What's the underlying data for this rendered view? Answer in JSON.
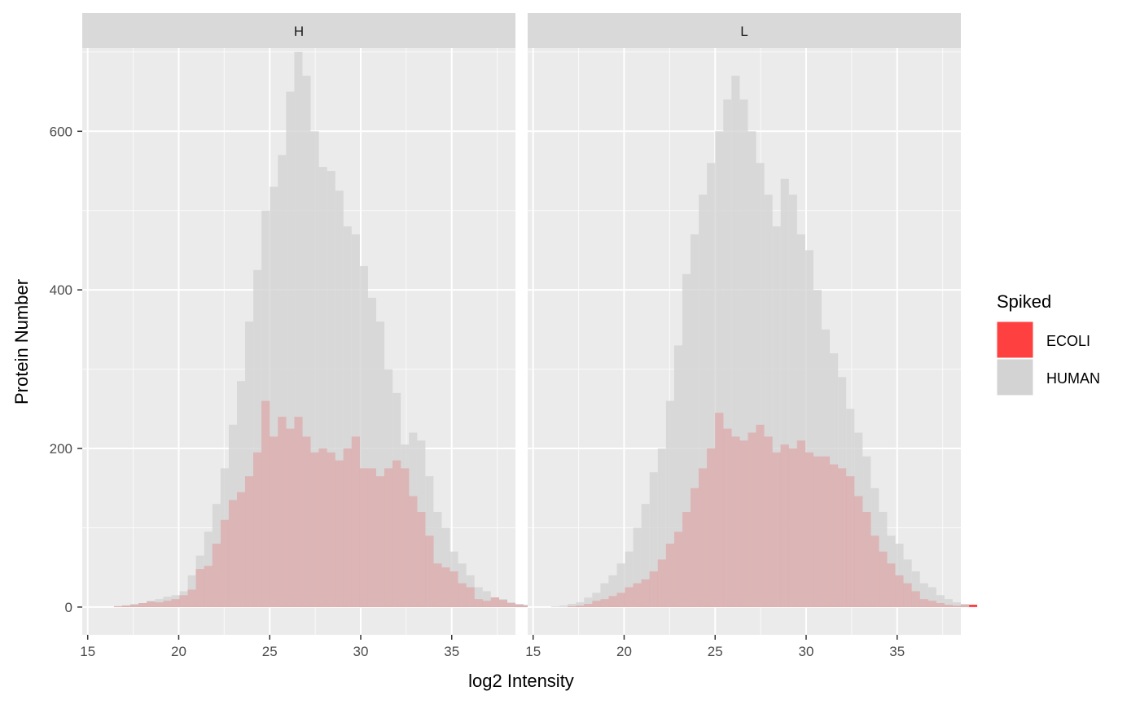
{
  "chart_data": {
    "type": "histogram",
    "xlabel": "log2 Intensity",
    "ylabel": "Protein Number",
    "facets": [
      "H",
      "L"
    ],
    "x_ticks": [
      15,
      20,
      25,
      30,
      35
    ],
    "y_ticks": [
      0,
      200,
      400,
      600
    ],
    "xlim": [
      14.7,
      38.5
    ],
    "ylim": [
      -35,
      705
    ],
    "bin_start": 16,
    "bin_width": 0.45,
    "legend": {
      "title": "Spiked",
      "position": "right",
      "entries": [
        {
          "label": "ECOLI",
          "color": "#ff4040"
        },
        {
          "label": "HUMAN",
          "color": "#d3d3d3"
        }
      ]
    },
    "series": [
      {
        "facet": "H",
        "name": "HUMAN",
        "values": [
          0,
          1,
          2,
          4,
          5,
          8,
          10,
          13,
          15,
          20,
          40,
          65,
          95,
          130,
          175,
          230,
          285,
          360,
          425,
          500,
          530,
          570,
          650,
          700,
          670,
          600,
          555,
          550,
          525,
          480,
          470,
          430,
          390,
          360,
          300,
          270,
          205,
          220,
          210,
          165,
          120,
          100,
          70,
          55,
          40,
          25,
          20,
          12,
          10,
          6,
          4,
          3
        ]
      },
      {
        "facet": "H",
        "name": "ECOLI",
        "values": [
          0,
          1,
          2,
          3,
          5,
          7,
          6,
          8,
          10,
          15,
          22,
          48,
          52,
          80,
          110,
          135,
          145,
          165,
          195,
          260,
          215,
          240,
          225,
          240,
          215,
          195,
          200,
          195,
          185,
          200,
          215,
          175,
          175,
          165,
          175,
          185,
          175,
          140,
          120,
          90,
          55,
          50,
          45,
          30,
          25,
          10,
          8,
          12,
          9,
          5,
          3,
          2
        ]
      }
    ],
    "series_L": [
      {
        "facet": "L",
        "name": "HUMAN",
        "values": [
          1,
          2,
          4,
          6,
          12,
          18,
          30,
          40,
          55,
          70,
          100,
          130,
          170,
          200,
          260,
          330,
          420,
          470,
          520,
          560,
          600,
          640,
          670,
          640,
          600,
          560,
          520,
          480,
          540,
          520,
          470,
          450,
          400,
          350,
          320,
          290,
          250,
          220,
          190,
          150,
          120,
          90,
          80,
          60,
          45,
          30,
          25,
          15,
          10,
          6,
          4,
          0
        ]
      },
      {
        "facet": "L",
        "name": "ECOLI",
        "values": [
          0,
          0,
          1,
          2,
          4,
          8,
          10,
          14,
          18,
          25,
          30,
          35,
          45,
          60,
          80,
          95,
          120,
          150,
          175,
          200,
          245,
          225,
          215,
          210,
          220,
          230,
          215,
          195,
          205,
          200,
          210,
          195,
          190,
          190,
          180,
          175,
          165,
          140,
          120,
          90,
          70,
          55,
          40,
          30,
          20,
          10,
          8,
          5,
          3,
          2,
          3,
          3
        ]
      }
    ]
  }
}
